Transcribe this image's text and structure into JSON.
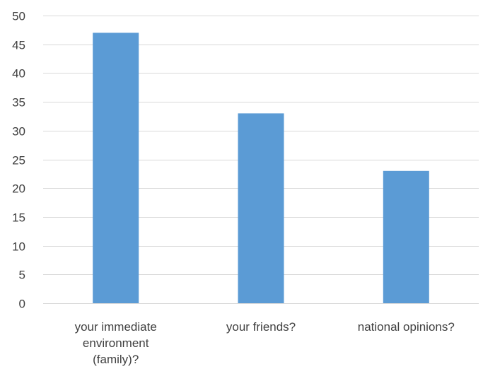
{
  "chart_data": {
    "type": "bar",
    "categories": [
      [
        "your immediate",
        "environment",
        "(family)?"
      ],
      [
        "your friends?"
      ],
      [
        "national opinions?"
      ]
    ],
    "values": [
      47,
      33,
      23
    ],
    "ylim": [
      0,
      50
    ],
    "ytick_step": 5,
    "yticks": [
      "0",
      "5",
      "10",
      "15",
      "20",
      "25",
      "30",
      "35",
      "40",
      "45",
      "50"
    ],
    "grid": true,
    "bar_color": "#5b9bd5",
    "grid_color": "#d9d9d9",
    "text_color": "#404040"
  }
}
